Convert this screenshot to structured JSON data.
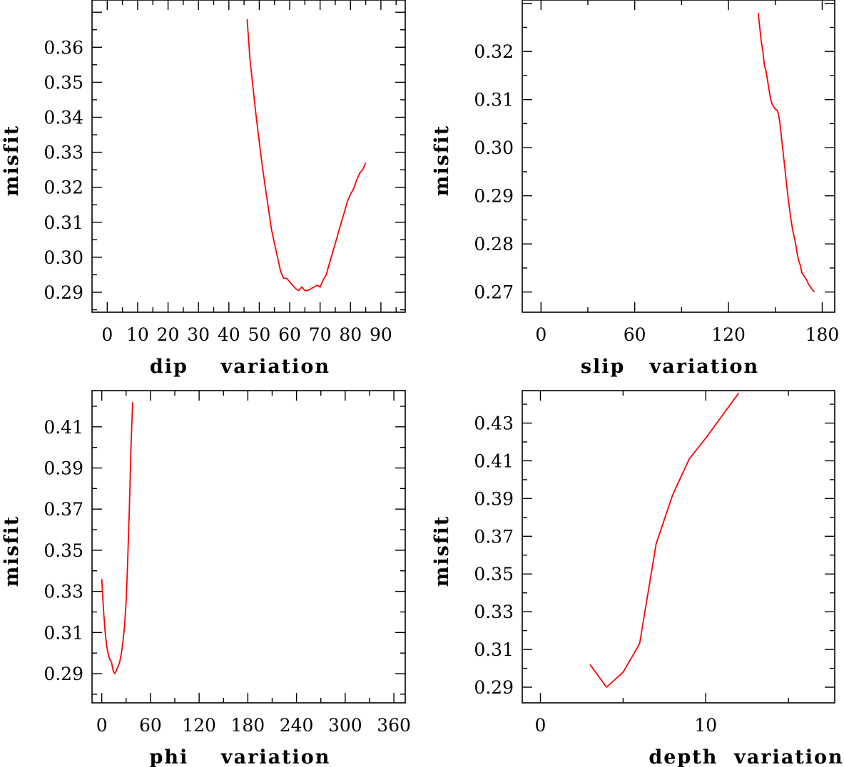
{
  "chart_data": [
    {
      "type": "line",
      "xlabel": "dip    variation",
      "ylabel": "misfit",
      "xlim": [
        -5,
        98
      ],
      "ylim": [
        0.2843,
        0.3735
      ],
      "xticks": [
        0,
        10,
        20,
        30,
        40,
        50,
        60,
        70,
        80,
        90
      ],
      "xtick_labels": [
        "0",
        "10",
        "20",
        "30",
        "40",
        "50",
        "60",
        "70",
        "80",
        "90"
      ],
      "yticks": [
        0.29,
        0.3,
        0.31,
        0.32,
        0.33,
        0.34,
        0.35,
        0.36
      ],
      "ytick_labels": [
        "0.29",
        "0.30",
        "0.31",
        "0.32",
        "0.33",
        "0.34",
        "0.35",
        "0.36"
      ],
      "color": "#ff0000",
      "series": [
        {
          "x": [
            46,
            47,
            48,
            49,
            50,
            51,
            52,
            53,
            54,
            55,
            56,
            57,
            58,
            59,
            60,
            61,
            62,
            63,
            64,
            65,
            66,
            67,
            68,
            69,
            70,
            71,
            72,
            73,
            74,
            75,
            76,
            77,
            78,
            79,
            80,
            81,
            82,
            83,
            84,
            85
          ],
          "y": [
            0.368,
            0.356,
            0.348,
            0.34,
            0.333,
            0.326,
            0.32,
            0.314,
            0.308,
            0.304,
            0.3,
            0.296,
            0.294,
            0.294,
            0.293,
            0.292,
            0.291,
            0.2905,
            0.2915,
            0.2905,
            0.2905,
            0.291,
            0.2915,
            0.292,
            0.2915,
            0.2935,
            0.295,
            0.298,
            0.301,
            0.304,
            0.307,
            0.31,
            0.313,
            0.316,
            0.318,
            0.3195,
            0.322,
            0.324,
            0.325,
            0.327
          ]
        }
      ]
    },
    {
      "type": "line",
      "xlabel": "slip   variation",
      "ylabel": "misfit",
      "xlim": [
        -12,
        188
      ],
      "ylim": [
        0.2658,
        0.3307
      ],
      "xticks": [
        0,
        60,
        120,
        180
      ],
      "xtick_labels": [
        "0",
        "60",
        "120",
        "180"
      ],
      "yticks": [
        0.27,
        0.28,
        0.29,
        0.3,
        0.31,
        0.32
      ],
      "ytick_labels": [
        "0.27",
        "0.28",
        "0.29",
        "0.30",
        "0.31",
        "0.32"
      ],
      "color": "#ff0000",
      "series": [
        {
          "x": [
            139,
            140,
            141,
            142,
            143,
            144,
            145,
            146,
            147,
            148,
            149,
            150,
            151,
            152,
            153,
            154,
            155,
            156,
            157,
            158,
            159,
            160,
            161,
            162,
            163,
            164,
            165,
            166,
            167,
            168,
            169,
            170,
            171,
            172,
            173,
            174,
            175
          ],
          "y": [
            0.328,
            0.325,
            0.322,
            0.32,
            0.317,
            0.316,
            0.314,
            0.312,
            0.31,
            0.309,
            0.3085,
            0.308,
            0.3078,
            0.307,
            0.305,
            0.302,
            0.299,
            0.296,
            0.293,
            0.29,
            0.2875,
            0.285,
            0.283,
            0.2815,
            0.28,
            0.278,
            0.2765,
            0.2755,
            0.274,
            0.2735,
            0.273,
            0.2725,
            0.2718,
            0.2712,
            0.2708,
            0.2704,
            0.27
          ]
        }
      ]
    },
    {
      "type": "line",
      "xlabel": "phi    variation",
      "ylabel": "misfit",
      "xlim": [
        -12,
        374
      ],
      "ylim": [
        0.2758,
        0.4276
      ],
      "xticks": [
        0,
        60,
        120,
        180,
        240,
        300,
        360
      ],
      "xtick_labels": [
        "0",
        "60",
        "120",
        "180",
        "240",
        "300",
        "360"
      ],
      "yticks": [
        0.29,
        0.31,
        0.33,
        0.35,
        0.37,
        0.39,
        0.41
      ],
      "ytick_labels": [
        "0.29",
        "0.31",
        "0.33",
        "0.35",
        "0.37",
        "0.39",
        "0.41"
      ],
      "color": "#ff0000",
      "series": [
        {
          "x": [
            0,
            2,
            4,
            6,
            8,
            10,
            12,
            14,
            16,
            18,
            20,
            22,
            24,
            26,
            28,
            30,
            32,
            34,
            36,
            38
          ],
          "y": [
            0.336,
            0.322,
            0.311,
            0.3035,
            0.2995,
            0.2968,
            0.2955,
            0.2915,
            0.29,
            0.2915,
            0.2935,
            0.2955,
            0.2995,
            0.305,
            0.313,
            0.325,
            0.345,
            0.37,
            0.4,
            0.422
          ]
        }
      ]
    },
    {
      "type": "line",
      "xlabel": "depth  variation",
      "ylabel": "misfit",
      "xlim": [
        -1.1,
        17.8
      ],
      "ylim": [
        0.2817,
        0.4472
      ],
      "xticks": [
        0,
        10
      ],
      "xtick_labels": [
        "0",
        "10"
      ],
      "yticks": [
        0.29,
        0.31,
        0.33,
        0.35,
        0.37,
        0.39,
        0.41,
        0.43
      ],
      "ytick_labels": [
        "0.29",
        "0.31",
        "0.33",
        "0.35",
        "0.37",
        "0.39",
        "0.41",
        "0.43"
      ],
      "color": "#ff0000",
      "series": [
        {
          "x": [
            3,
            4,
            5,
            6,
            7,
            8,
            9,
            10,
            11,
            12
          ],
          "y": [
            0.302,
            0.29,
            0.298,
            0.313,
            0.366,
            0.392,
            0.411,
            0.422,
            0.434,
            0.446
          ]
        }
      ]
    }
  ]
}
